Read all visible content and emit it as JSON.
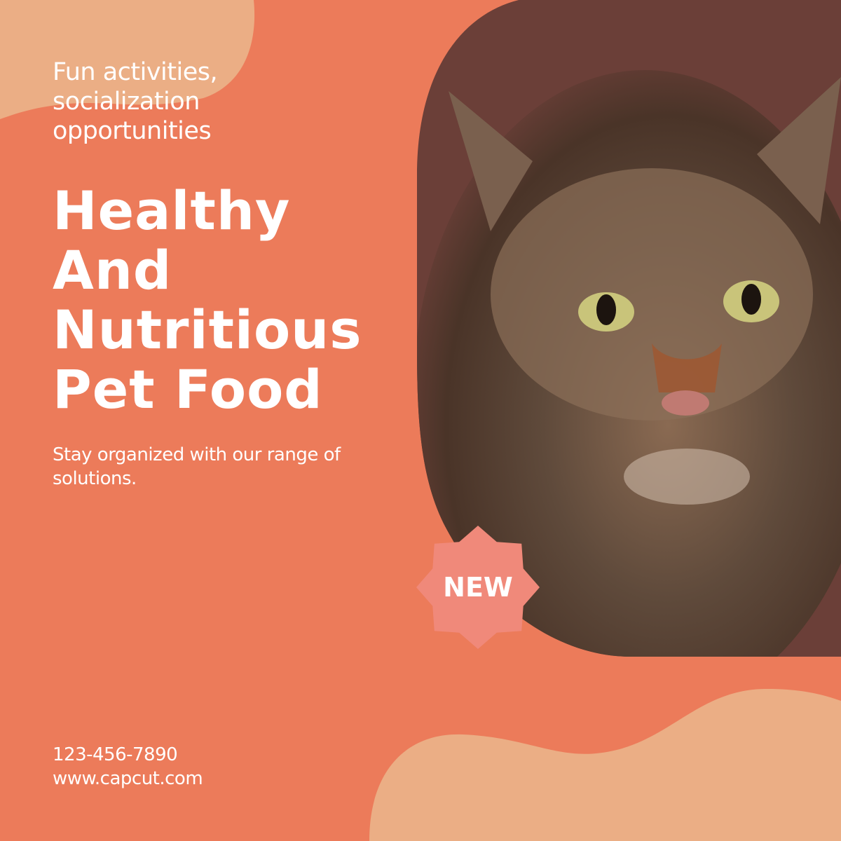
{
  "tagline": [
    "Fun activities,",
    "socialization",
    "opportunities"
  ],
  "headline": [
    "Healthy",
    "And",
    "Nutritious",
    "Pet Food"
  ],
  "subtitle": "Stay organized with our range of solutions.",
  "badge": {
    "label": "NEW",
    "icon": "starburst-badge"
  },
  "contact": {
    "phone": "123-456-7890",
    "website": "www.capcut.com"
  },
  "photo": {
    "subject": "cat-photo"
  },
  "colors": {
    "background": "#EC7B5A",
    "accent_blob": "#EBAE85",
    "badge": "#F0897A",
    "photo_backdrop": "#6B3F38"
  }
}
